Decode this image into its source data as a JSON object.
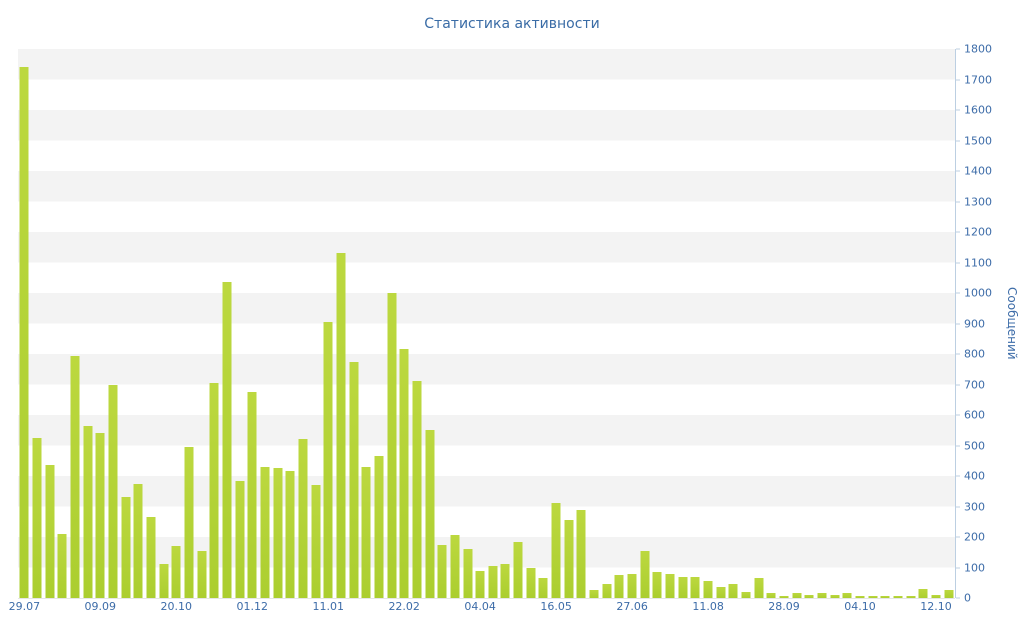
{
  "title": "Статистика активности",
  "y_axis_title": "Сообщений",
  "colors": {
    "bar": "#b3d334",
    "text": "#3d6ca8",
    "stripe": "#f3f3f3",
    "axis": "#bccfe2"
  },
  "chart_data": {
    "type": "bar",
    "title": "Статистика активности",
    "xlabel": "",
    "ylabel": "Сообщений",
    "ylim": [
      0,
      1800
    ],
    "y_tick_step": 100,
    "grid": "horizontal-stripes",
    "legend": "none",
    "x_tick_labels": [
      "29.07",
      "09.09",
      "20.10",
      "01.12",
      "11.01",
      "22.02",
      "04.04",
      "16.05",
      "27.06",
      "11.08",
      "28.09",
      "04.10",
      "12.10"
    ],
    "x_tick_indices": [
      0,
      6,
      12,
      18,
      24,
      30,
      36,
      42,
      48,
      54,
      60,
      66,
      72
    ],
    "values": [
      1740,
      525,
      435,
      210,
      795,
      565,
      540,
      700,
      330,
      375,
      265,
      110,
      170,
      495,
      155,
      705,
      1035,
      385,
      675,
      430,
      425,
      415,
      520,
      370,
      905,
      1130,
      775,
      430,
      465,
      1000,
      815,
      710,
      550,
      175,
      205,
      160,
      90,
      105,
      110,
      185,
      100,
      65,
      310,
      255,
      290,
      25,
      45,
      75,
      80,
      155,
      85,
      80,
      70,
      70,
      55,
      35,
      45,
      20,
      65,
      15,
      5,
      15,
      10,
      15,
      10,
      15,
      5,
      5,
      5,
      5,
      5,
      30,
      10,
      25
    ]
  }
}
